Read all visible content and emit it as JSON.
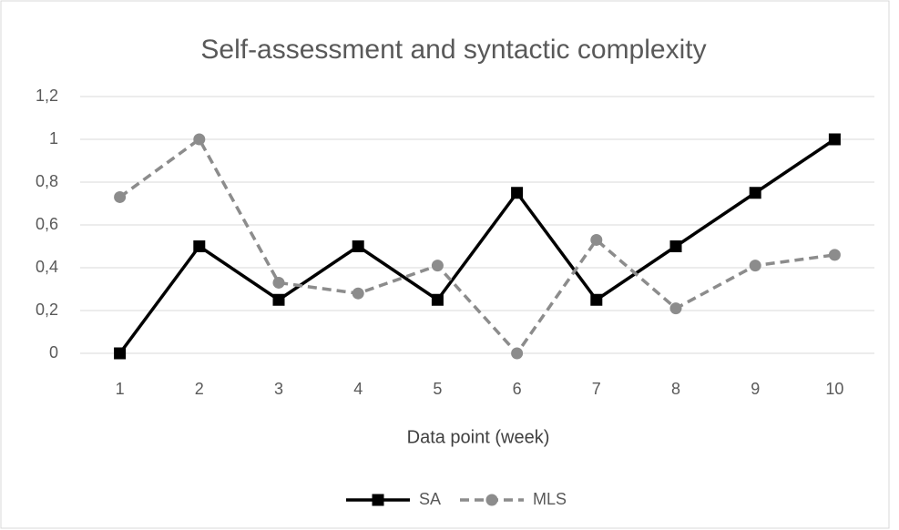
{
  "chart_data": {
    "type": "line",
    "title": "Self-assessment and syntactic complexity",
    "x_label": "Data point (week)",
    "categories": [
      "1",
      "2",
      "3",
      "4",
      "5",
      "6",
      "7",
      "8",
      "9",
      "10"
    ],
    "series": [
      {
        "name": "SA",
        "color": "#000000",
        "dashed": false,
        "marker": "square",
        "values": [
          0,
          0.5,
          0.25,
          0.5,
          0.25,
          0.75,
          0.25,
          0.5,
          0.75,
          1
        ]
      },
      {
        "name": "MLS",
        "color": "#8c8c8c",
        "dashed": true,
        "marker": "circle",
        "values": [
          0.73,
          1,
          0.33,
          0.28,
          0.41,
          0,
          0.53,
          0.21,
          0.41,
          0.46
        ]
      }
    ],
    "ylim": [
      0,
      1.2
    ],
    "yticks": [
      0,
      {
        "value": 0.2,
        "label": "0,2"
      },
      {
        "value": 0.4,
        "label": "0,4"
      },
      {
        "value": 0.6,
        "label": "0,6"
      },
      {
        "value": 0.8,
        "label": "0,8"
      },
      1,
      {
        "value": 1.2,
        "label": "1,2"
      }
    ],
    "grid": true,
    "legend": "bottom"
  }
}
